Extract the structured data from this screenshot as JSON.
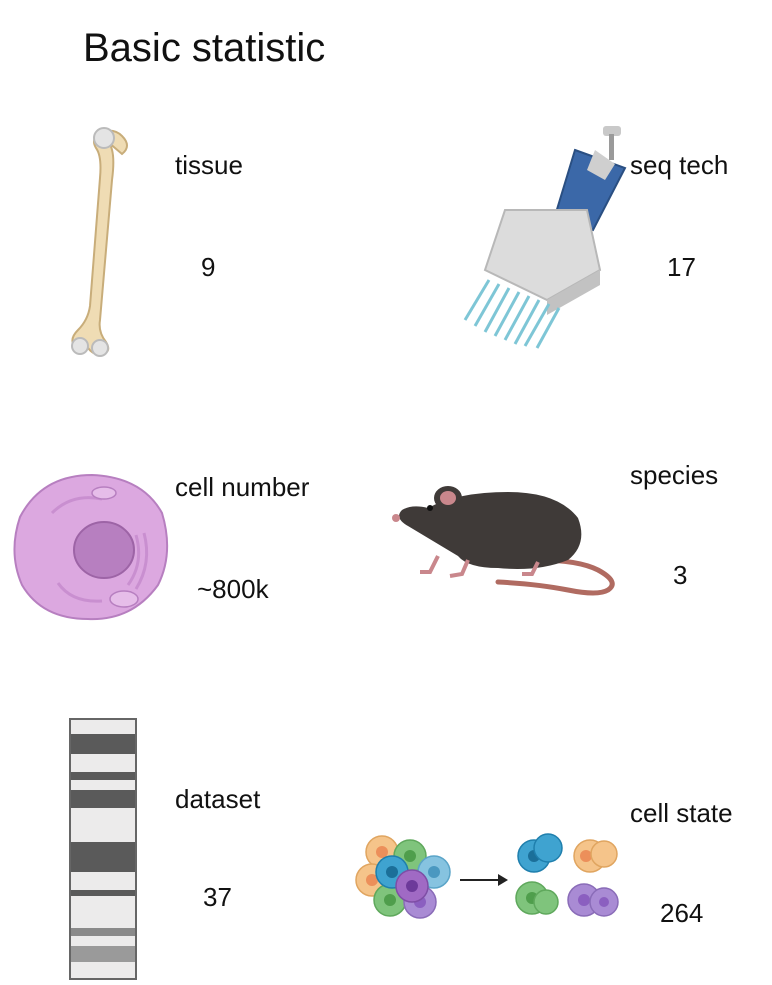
{
  "title": "Basic statistic",
  "stats": [
    {
      "label": "tissue",
      "value": "9",
      "icon": "bone-icon"
    },
    {
      "label": "seq tech",
      "value": "17",
      "icon": "multichannel-pipette-icon"
    },
    {
      "label": "cell number",
      "value": "~800k",
      "icon": "cell-icon"
    },
    {
      "label": "species",
      "value": "3",
      "icon": "mouse-icon"
    },
    {
      "label": "dataset",
      "value": "37",
      "icon": "gel-lane-icon"
    },
    {
      "label": "cell state",
      "value": "264",
      "icon": "cell-clustering-icon"
    }
  ]
}
